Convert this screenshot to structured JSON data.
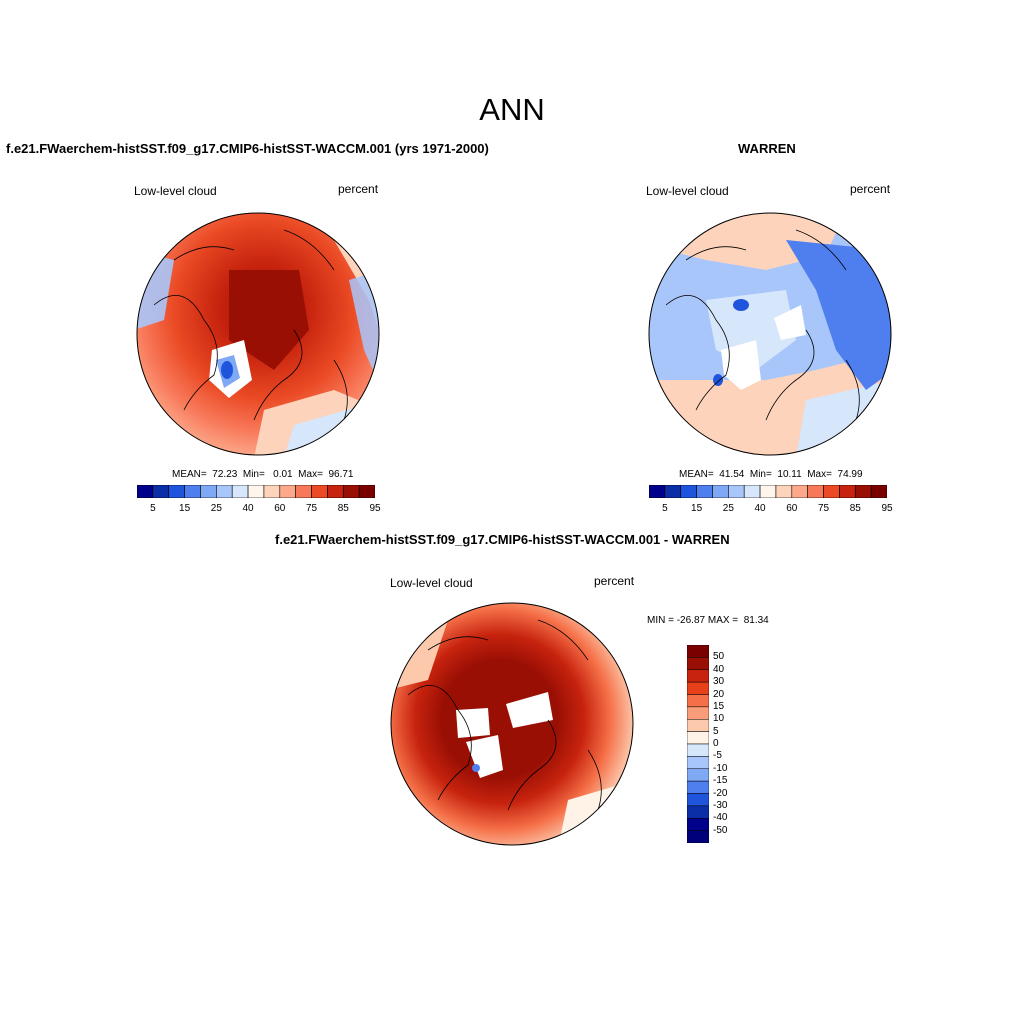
{
  "main_title": "ANN",
  "panels": [
    {
      "title": "f.e21.FWaerchem-histSST.f09_g17.CMIP6-histSST-WACCM.001 (yrs 1971-2000)",
      "left_label": "Low-level cloud",
      "right_label": "percent",
      "stats": "MEAN=  72.23  Min=   0.01  Max=  96.71",
      "colorbar_ticks": [
        "5",
        "15",
        "25",
        "40",
        "60",
        "75",
        "85",
        "95"
      ]
    },
    {
      "title": "WARREN",
      "left_label": "Low-level cloud",
      "right_label": "percent",
      "stats": "MEAN=  41.54  Min=  10.11  Max=  74.99",
      "colorbar_ticks": [
        "5",
        "15",
        "25",
        "40",
        "60",
        "75",
        "85",
        "95"
      ]
    },
    {
      "title": "f.e21.FWaerchem-histSST.f09_g17.CMIP6-histSST-WACCM.001 - WARREN",
      "left_label": "Low-level cloud",
      "right_label": "percent",
      "stats": "MIN = -26.87 MAX =  81.34",
      "colorbar_ticks": [
        "50",
        "40",
        "30",
        "20",
        "15",
        "10",
        "5",
        "0",
        "-5",
        "-10",
        "-15",
        "-20",
        "-30",
        "-40",
        "-50"
      ]
    }
  ],
  "colors": {
    "abs_scale": [
      "#00008b",
      "#0a2fa6",
      "#1f55dd",
      "#4f7fef",
      "#7fa8f5",
      "#a8c6fa",
      "#d6e6fb",
      "#fff5ec",
      "#fdd3bb",
      "#fba98a",
      "#f8795a",
      "#ea4a24",
      "#c7230e",
      "#9a0f04",
      "#7a0000"
    ],
    "diff_scale": [
      "#7a0000",
      "#9a0f04",
      "#c7230e",
      "#e8401a",
      "#f57048",
      "#f99c7a",
      "#fcc9ad",
      "#fff2e6",
      "#d6e6fb",
      "#a8c6fa",
      "#7fa8f5",
      "#4f7fef",
      "#1f55dd",
      "#0a2fa6",
      "#00008b",
      "#00007a"
    ],
    "land_fill_missing": "#ffffff",
    "coastline": "#000000"
  }
}
